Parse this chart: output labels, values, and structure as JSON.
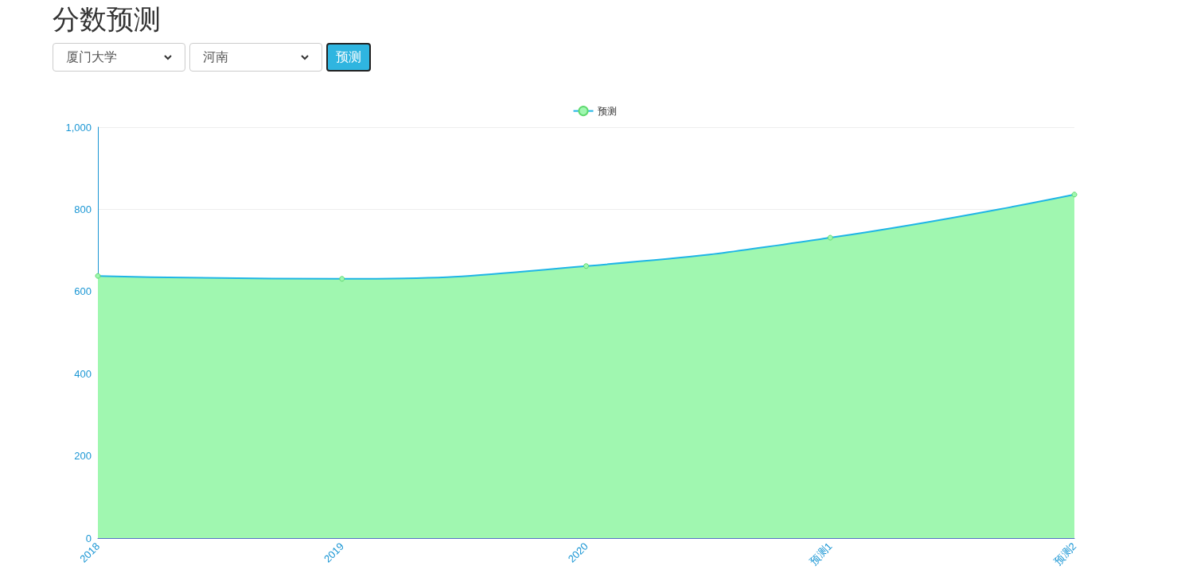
{
  "chart_data": {
    "type": "area",
    "title": "分数预测",
    "annotations": [
      "厦门大学",
      "河南",
      "预测"
    ],
    "categories": [
      "2018",
      "2019",
      "2020",
      "预测1",
      "预测2"
    ],
    "series": [
      {
        "name": "预测",
        "color": "#a0f7b0",
        "values": [
          638,
          631,
          662,
          731,
          836
        ]
      }
    ],
    "ylim": [
      0,
      1000
    ],
    "yticks": [
      0,
      200,
      400,
      600,
      800,
      {
        "value": 1000,
        "label": "1,000"
      }
    ],
    "grid": true,
    "legend": "top",
    "marker": "circle"
  }
}
